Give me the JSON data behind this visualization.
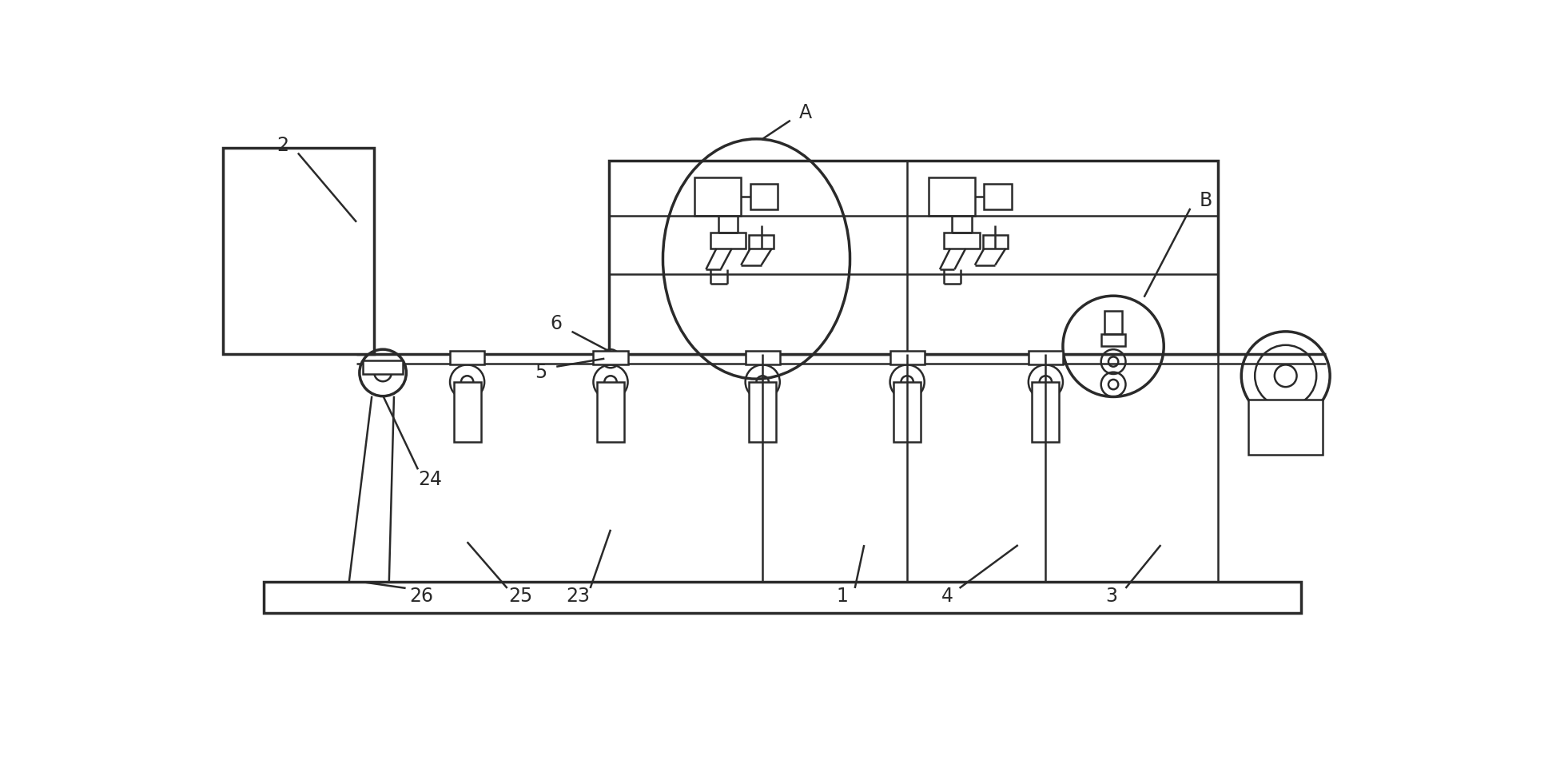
{
  "bg_color": "#ffffff",
  "lc": "#2a2a2a",
  "lw": 1.8,
  "lw2": 2.5,
  "lw3": 3.0,
  "figw": 19.58,
  "figh": 9.61,
  "dpi": 100,
  "xmax": 19.58,
  "ymax": 9.61
}
